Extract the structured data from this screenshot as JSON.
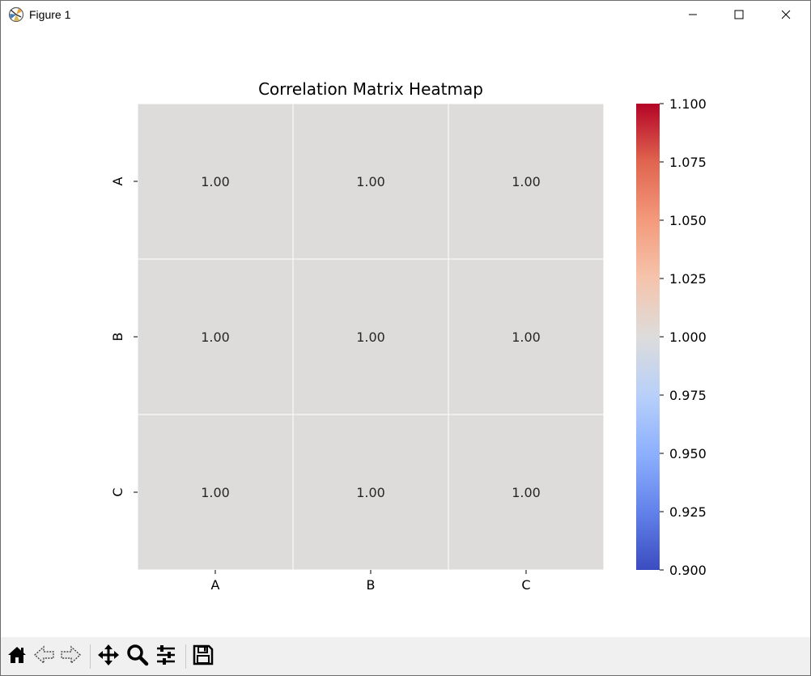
{
  "window": {
    "title": "Figure 1",
    "icons": {
      "app": "matplotlib-figure-icon",
      "minimize": "minimize-icon",
      "maximize": "maximize-icon",
      "close": "close-icon"
    }
  },
  "toolbar": {
    "buttons": [
      {
        "name": "home-button",
        "icon": "home-icon"
      },
      {
        "name": "back-button",
        "icon": "back-arrow-icon"
      },
      {
        "name": "forward-button",
        "icon": "forward-arrow-icon"
      },
      {
        "name": "pan-button",
        "icon": "move-icon"
      },
      {
        "name": "zoom-button",
        "icon": "magnifier-icon"
      },
      {
        "name": "configure-subplots-button",
        "icon": "sliders-icon"
      },
      {
        "name": "save-button",
        "icon": "floppy-disk-icon"
      }
    ]
  },
  "chart_data": {
    "type": "heatmap",
    "title": "Correlation Matrix Heatmap",
    "x_categories": [
      "A",
      "B",
      "C"
    ],
    "y_categories": [
      "A",
      "B",
      "C"
    ],
    "values": [
      [
        1.0,
        1.0,
        1.0
      ],
      [
        1.0,
        1.0,
        1.0
      ],
      [
        1.0,
        1.0,
        1.0
      ]
    ],
    "annotations": [
      [
        "1.00",
        "1.00",
        "1.00"
      ],
      [
        "1.00",
        "1.00",
        "1.00"
      ],
      [
        "1.00",
        "1.00",
        "1.00"
      ]
    ],
    "colormap": "coolwarm",
    "cell_color": "#dddcdb",
    "cell_line_color": "#ffffff",
    "colorbar": {
      "vmin": 0.9,
      "vmax": 1.1,
      "ticks": [
        0.9,
        0.925,
        0.95,
        0.975,
        1.0,
        1.025,
        1.05,
        1.075,
        1.1
      ],
      "tick_labels": [
        "0.900",
        "0.925",
        "0.950",
        "0.975",
        "1.000",
        "1.025",
        "1.050",
        "1.075",
        "1.100"
      ],
      "gradient_stops": [
        "#3b4cc0",
        "#6282ea",
        "#8db0fe",
        "#b8d0f9",
        "#dddcdb",
        "#f5c4ac",
        "#f49a7b",
        "#e0654f",
        "#b40426"
      ]
    },
    "grid": false,
    "legend": "none"
  }
}
